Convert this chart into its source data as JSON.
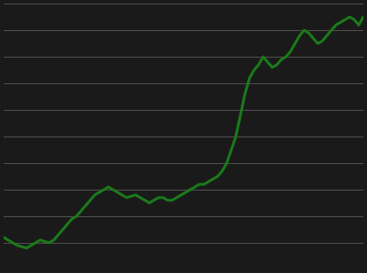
{
  "background_color": "#1a1a1a",
  "plot_bg_color": "#1a1a1a",
  "line_color": "#1a7a1a",
  "line_width": 2.2,
  "grid_color": "#ffffff",
  "grid_alpha": 0.25,
  "grid_linewidth": 0.7,
  "ylim": [
    -20,
    80
  ],
  "yticks": [
    -20,
    -10,
    0,
    10,
    20,
    30,
    40,
    50,
    60,
    70,
    80
  ],
  "y_values": [
    -8,
    -9,
    -10,
    -11,
    -11.5,
    -12,
    -11,
    -10,
    -9,
    -9.5,
    -10,
    -9,
    -7,
    -5,
    -3,
    -1,
    0,
    2,
    4,
    6,
    8,
    9,
    10,
    11,
    10,
    9,
    8,
    7,
    7.5,
    8,
    7,
    6,
    5,
    6,
    7,
    7,
    6,
    6,
    7,
    8,
    9,
    10,
    11,
    12,
    12,
    13,
    14,
    15,
    17,
    20,
    25,
    30,
    38,
    46,
    52,
    55,
    57,
    60,
    58,
    56,
    57,
    59,
    60,
    62,
    65,
    68,
    70,
    69,
    67,
    65,
    66,
    68,
    70,
    72,
    73,
    74,
    75,
    74,
    72,
    75
  ]
}
